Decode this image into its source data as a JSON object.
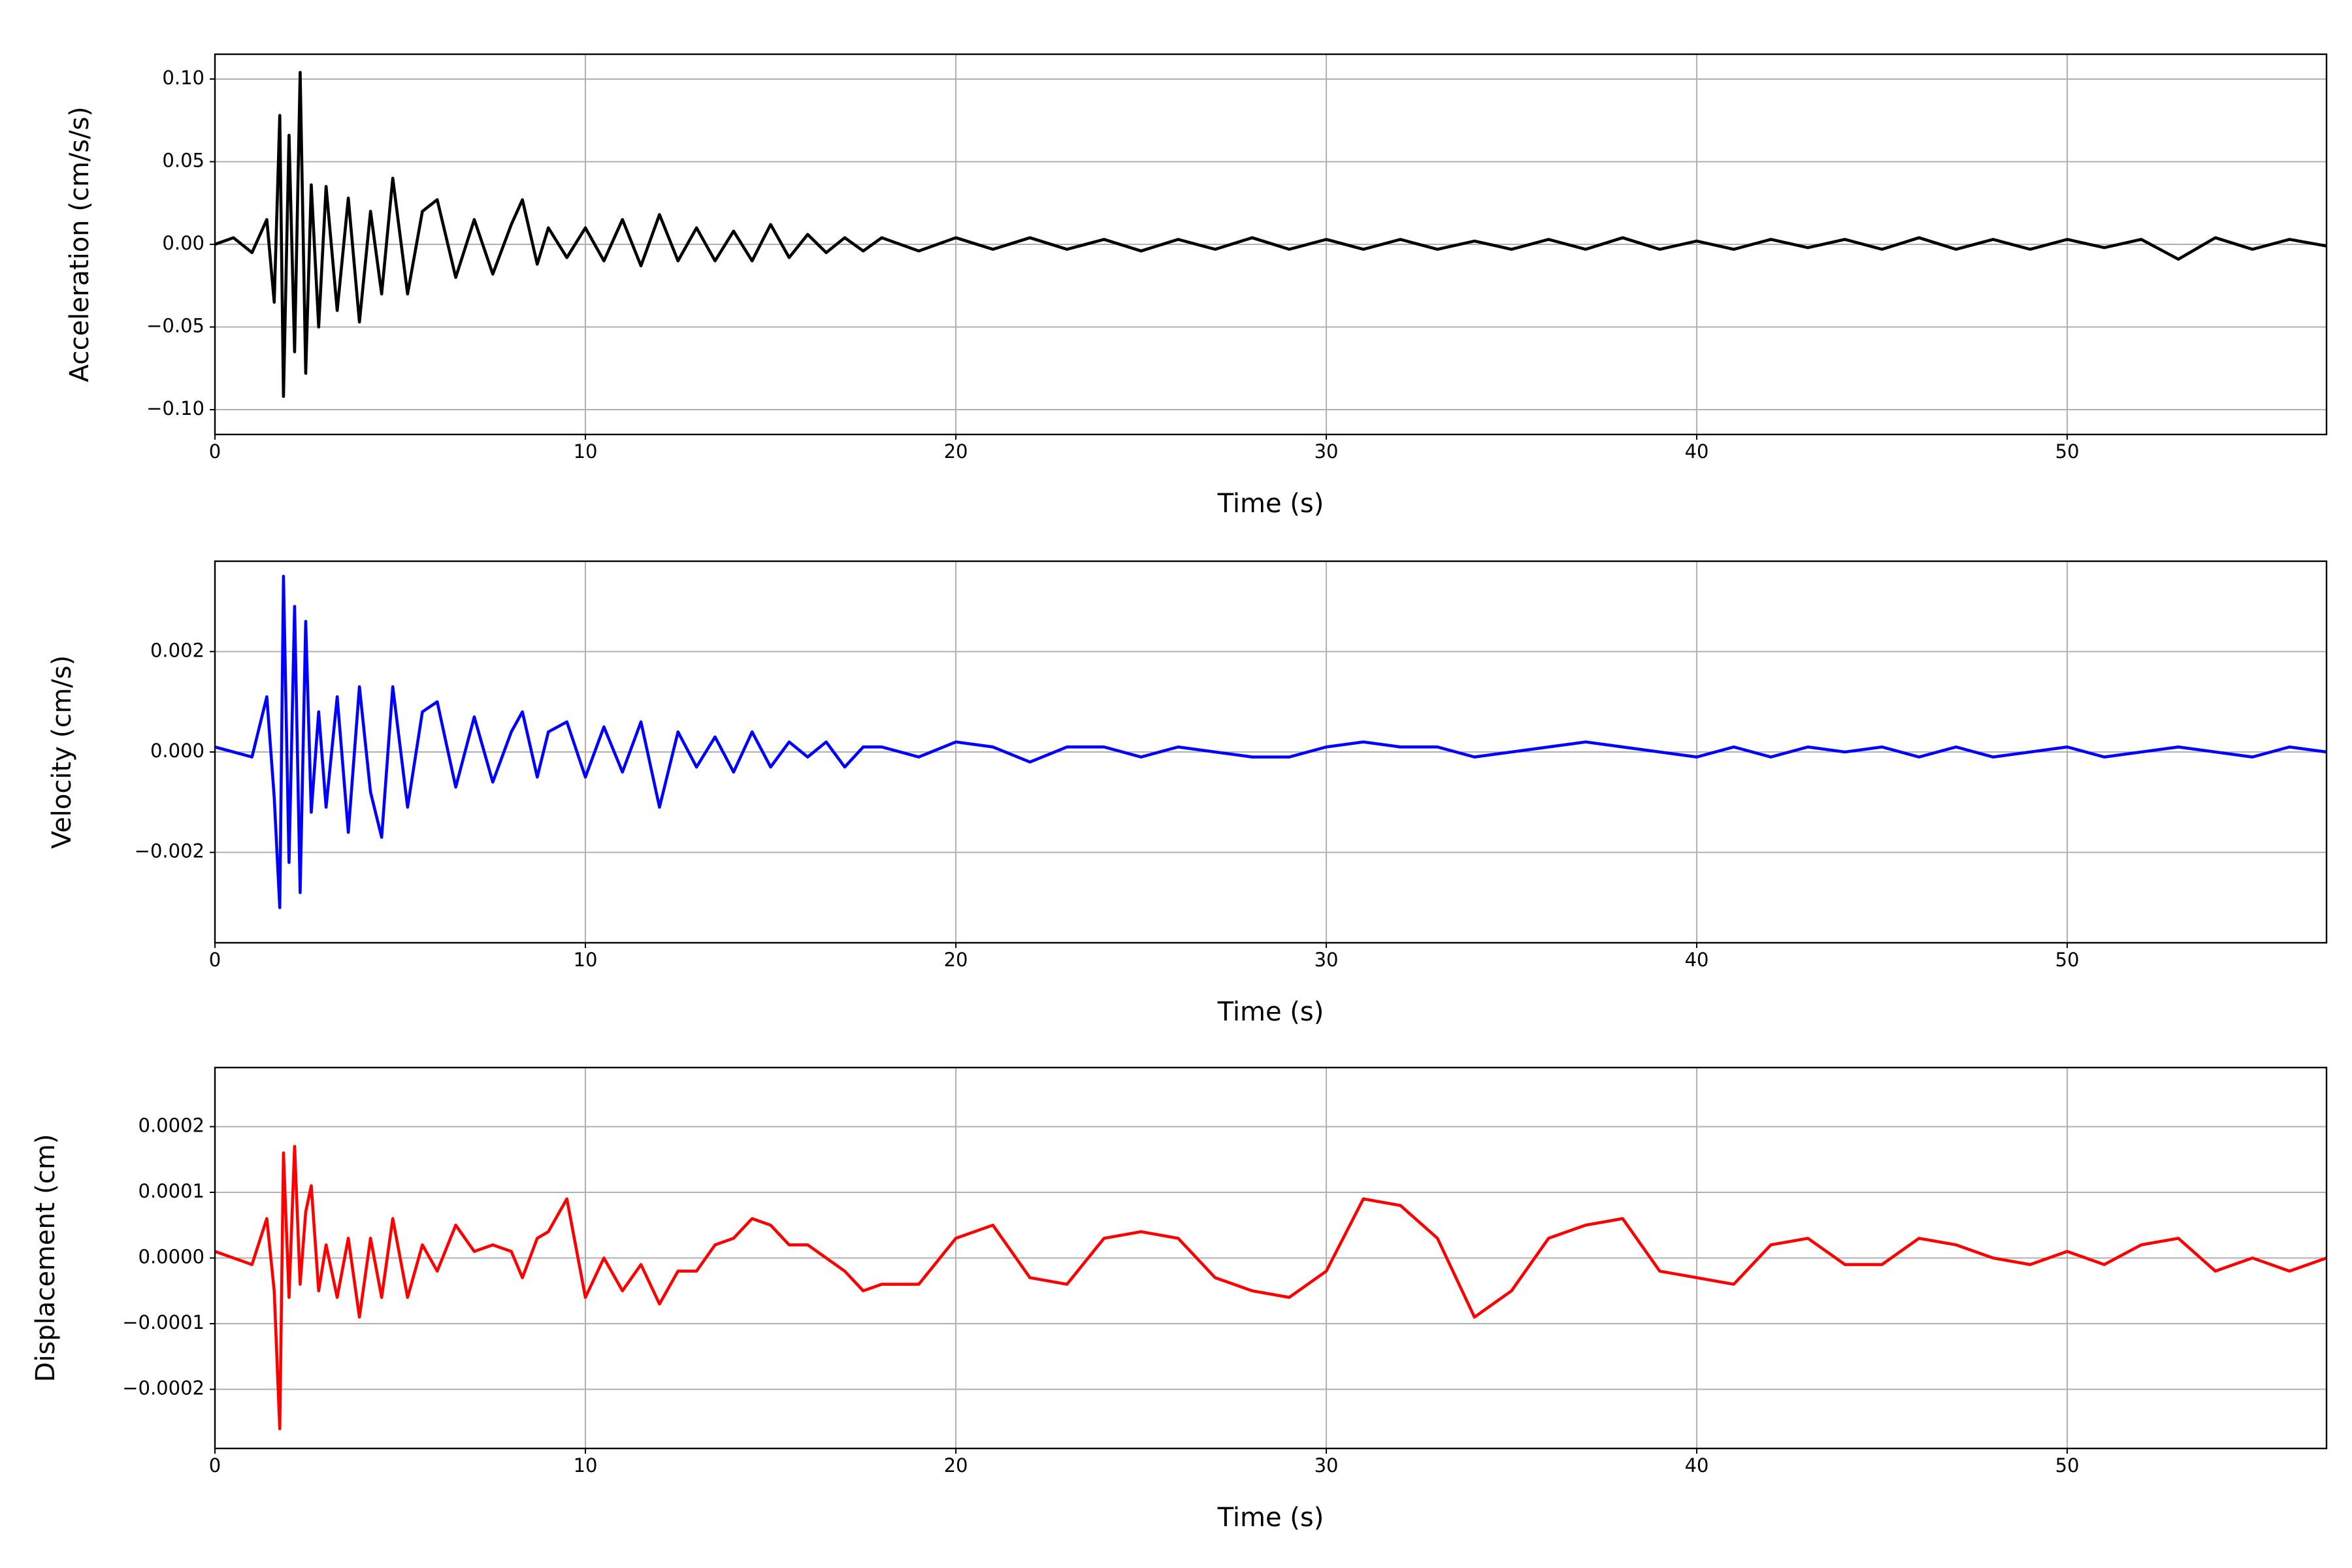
{
  "chart_data": [
    {
      "type": "line",
      "xlabel": "Time (s)",
      "ylabel": "Acceleration (cm/s/s)",
      "x": [
        0,
        0.5,
        1,
        1.4,
        1.6,
        1.75,
        1.85,
        2.0,
        2.15,
        2.3,
        2.45,
        2.6,
        2.8,
        3.0,
        3.3,
        3.6,
        3.9,
        4.2,
        4.5,
        4.8,
        5.2,
        5.6,
        6,
        6.5,
        7,
        7.5,
        8,
        8.3,
        8.7,
        9,
        9.5,
        10,
        10.5,
        11,
        11.5,
        12,
        12.5,
        13,
        13.5,
        14,
        14.5,
        15,
        15.5,
        16,
        16.5,
        17,
        17.5,
        18,
        19,
        20,
        21,
        22,
        23,
        24,
        25,
        26,
        27,
        28,
        29,
        30,
        31,
        32,
        33,
        34,
        35,
        36,
        37,
        38,
        39,
        40,
        41,
        42,
        43,
        44,
        45,
        46,
        47,
        48,
        49,
        50,
        51,
        52,
        53,
        54,
        55,
        56,
        57
      ],
      "series": [
        {
          "color": "#000000",
          "values": [
            0.0,
            0.004,
            -0.005,
            0.015,
            -0.035,
            0.078,
            -0.092,
            0.066,
            -0.065,
            0.104,
            -0.078,
            0.036,
            -0.05,
            0.035,
            -0.04,
            0.028,
            -0.047,
            0.02,
            -0.03,
            0.04,
            -0.03,
            0.02,
            0.027,
            -0.02,
            0.015,
            -0.018,
            0.012,
            0.027,
            -0.012,
            0.01,
            -0.008,
            0.01,
            -0.01,
            0.015,
            -0.013,
            0.018,
            -0.01,
            0.01,
            -0.01,
            0.008,
            -0.01,
            0.012,
            -0.008,
            0.006,
            -0.005,
            0.004,
            -0.004,
            0.004,
            -0.004,
            0.004,
            -0.003,
            0.004,
            -0.003,
            0.003,
            -0.004,
            0.003,
            -0.003,
            0.004,
            -0.003,
            0.003,
            -0.003,
            0.003,
            -0.003,
            0.002,
            -0.003,
            0.003,
            -0.003,
            0.004,
            -0.003,
            0.002,
            -0.003,
            0.003,
            -0.002,
            0.003,
            -0.003,
            0.004,
            -0.003,
            0.003,
            -0.003,
            0.003,
            -0.002,
            0.003,
            -0.009,
            0.004,
            -0.003,
            0.003,
            -0.001
          ]
        }
      ],
      "xlim": [
        0,
        57
      ],
      "xticks": [
        0,
        10,
        20,
        30,
        40,
        50
      ],
      "ylim": [
        -0.115,
        0.115
      ],
      "yticks": [
        {
          "value": -0.1,
          "label": "−0.10"
        },
        {
          "value": -0.05,
          "label": "−0.05"
        },
        {
          "value": 0,
          "label": "0.00"
        },
        {
          "value": 0.05,
          "label": "0.05"
        },
        {
          "value": 0.1,
          "label": "0.10"
        }
      ],
      "grid": true
    },
    {
      "type": "line",
      "xlabel": "Time (s)",
      "ylabel": "Velocity (cm/s)",
      "x": [
        0,
        0.5,
        1,
        1.4,
        1.6,
        1.75,
        1.85,
        2.0,
        2.15,
        2.3,
        2.45,
        2.6,
        2.8,
        3.0,
        3.3,
        3.6,
        3.9,
        4.2,
        4.5,
        4.8,
        5.2,
        5.6,
        6,
        6.5,
        7,
        7.5,
        8,
        8.3,
        8.7,
        9,
        9.5,
        10,
        10.5,
        11,
        11.5,
        12,
        12.5,
        13,
        13.5,
        14,
        14.5,
        15,
        15.5,
        16,
        16.5,
        17,
        17.5,
        18,
        19,
        20,
        21,
        22,
        23,
        24,
        25,
        26,
        27,
        28,
        29,
        30,
        31,
        32,
        33,
        34,
        35,
        36,
        37,
        38,
        39,
        40,
        41,
        42,
        43,
        44,
        45,
        46,
        47,
        48,
        49,
        50,
        51,
        52,
        53,
        54,
        55,
        56,
        57
      ],
      "series": [
        {
          "color": "#0000ff",
          "values": [
            0.0001,
            0.0,
            -0.0001,
            0.0011,
            -0.0009,
            -0.0031,
            0.0035,
            -0.0022,
            0.0029,
            -0.0028,
            0.0026,
            -0.0012,
            0.0008,
            -0.0011,
            0.0011,
            -0.0016,
            0.0013,
            -0.0008,
            -0.0017,
            0.0013,
            -0.0011,
            0.0008,
            0.001,
            -0.0007,
            0.0007,
            -0.0006,
            0.0004,
            0.0008,
            -0.0005,
            0.0004,
            0.0006,
            -0.0005,
            0.0005,
            -0.0004,
            0.0006,
            -0.0011,
            0.0004,
            -0.0003,
            0.0003,
            -0.0004,
            0.0004,
            -0.0003,
            0.0002,
            -0.0001,
            0.0002,
            -0.0003,
            0.0001,
            0.0001,
            -0.0001,
            0.0002,
            0.0001,
            -0.0002,
            0.0001,
            0.0001,
            -0.0001,
            0.0001,
            0.0,
            -0.0001,
            -0.0001,
            0.0001,
            0.0002,
            0.0001,
            0.0001,
            -0.0001,
            0.0,
            0.0001,
            0.0002,
            0.0001,
            0.0,
            -0.0001,
            0.0001,
            -0.0001,
            0.0001,
            0.0,
            0.0001,
            -0.0001,
            0.0001,
            -0.0001,
            0.0,
            0.0001,
            -0.0001,
            0.0,
            0.0001,
            0.0,
            -0.0001,
            0.0001,
            0.0
          ]
        }
      ],
      "xlim": [
        0,
        57
      ],
      "xticks": [
        0,
        10,
        20,
        30,
        40,
        50
      ],
      "ylim": [
        -0.0038,
        0.0038
      ],
      "yticks": [
        {
          "value": -0.002,
          "label": "−0.002"
        },
        {
          "value": 0,
          "label": "0.000"
        },
        0.002
      ],
      "grid": true
    },
    {
      "type": "line",
      "xlabel": "Time (s)",
      "ylabel": "Displacement (cm)",
      "x": [
        0,
        0.5,
        1,
        1.4,
        1.6,
        1.75,
        1.85,
        2.0,
        2.15,
        2.3,
        2.45,
        2.6,
        2.8,
        3.0,
        3.3,
        3.6,
        3.9,
        4.2,
        4.5,
        4.8,
        5.2,
        5.6,
        6,
        6.5,
        7,
        7.5,
        8,
        8.3,
        8.7,
        9,
        9.5,
        10,
        10.5,
        11,
        11.5,
        12,
        12.5,
        13,
        13.5,
        14,
        14.5,
        15,
        15.5,
        16,
        16.5,
        17,
        17.5,
        18,
        19,
        20,
        21,
        22,
        23,
        24,
        25,
        26,
        27,
        28,
        29,
        30,
        31,
        32,
        33,
        34,
        35,
        36,
        37,
        38,
        39,
        40,
        41,
        42,
        43,
        44,
        45,
        46,
        47,
        48,
        49,
        50,
        51,
        52,
        53,
        54,
        55,
        56,
        57
      ],
      "series": [
        {
          "color": "#ff0000",
          "values": [
            1e-05,
            0.0,
            -1e-05,
            6e-05,
            -5e-05,
            -0.00026,
            0.00016,
            -6e-05,
            0.00017,
            -4e-05,
            7e-05,
            0.00011,
            -5e-05,
            2e-05,
            -6e-05,
            3e-05,
            -9e-05,
            3e-05,
            -6e-05,
            6e-05,
            -6e-05,
            2e-05,
            -2e-05,
            5e-05,
            1e-05,
            2e-05,
            1e-05,
            -3e-05,
            3e-05,
            4e-05,
            9e-05,
            -6e-05,
            0.0,
            -5e-05,
            -1e-05,
            -7e-05,
            -2e-05,
            -2e-05,
            2e-05,
            3e-05,
            6e-05,
            5e-05,
            2e-05,
            2e-05,
            0.0,
            -2e-05,
            -5e-05,
            -4e-05,
            -4e-05,
            3e-05,
            5e-05,
            -3e-05,
            -4e-05,
            3e-05,
            4e-05,
            3e-05,
            -3e-05,
            -5e-05,
            -6e-05,
            -2e-05,
            9e-05,
            8e-05,
            3e-05,
            -9e-05,
            -5e-05,
            3e-05,
            5e-05,
            6e-05,
            -2e-05,
            -3e-05,
            -4e-05,
            2e-05,
            3e-05,
            -1e-05,
            -1e-05,
            3e-05,
            2e-05,
            0.0,
            -1e-05,
            1e-05,
            -1e-05,
            2e-05,
            3e-05,
            -2e-05,
            0.0,
            -2e-05,
            0.0
          ]
        }
      ],
      "xlim": [
        0,
        57
      ],
      "xticks": [
        0,
        10,
        20,
        30,
        40,
        50
      ],
      "ylim": [
        -0.00029,
        0.00029
      ],
      "yticks": [
        {
          "value": -0.0002,
          "label": "−0.0002"
        },
        {
          "value": -0.0001,
          "label": "−0.0001"
        },
        {
          "value": 0,
          "label": "0.0000"
        },
        {
          "value": 0.0001,
          "label": "0.0001"
        },
        {
          "value": 0.0002,
          "label": "0.0002"
        }
      ],
      "grid": true
    }
  ]
}
